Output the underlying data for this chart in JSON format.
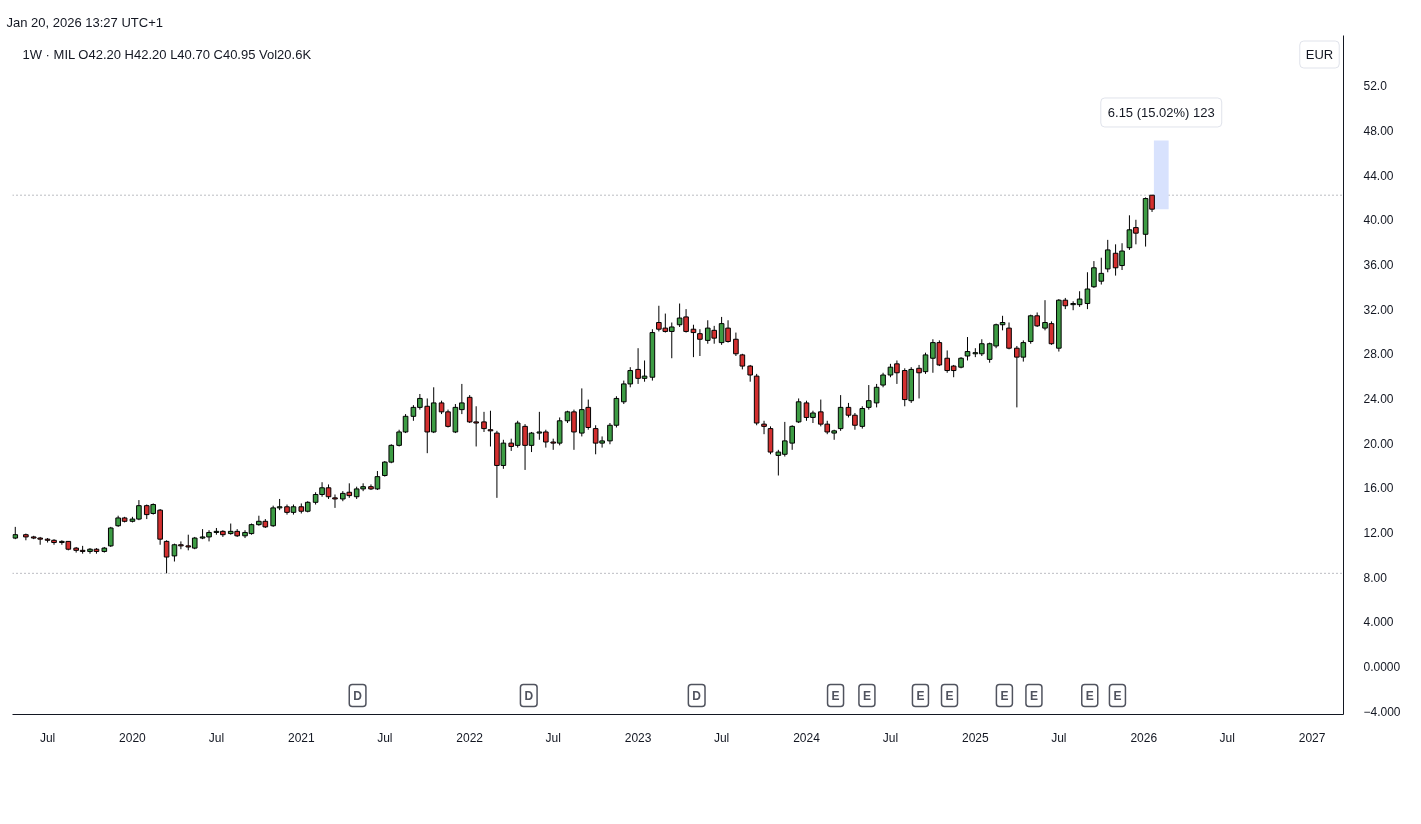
{
  "chart_data": {
    "type": "candlestick",
    "title": "1W · MIL O42.20 H42.20 L40.70 C40.95 Vol20.6K",
    "ylabel": "EUR",
    "annotations": [
      "Jan 20, 2026 13:27 UTC+1",
      {
        "text": "6.15 (15.02%) 123",
        "x": "2026-02-08",
        "y": 47.1
      },
      {
        "text": "D",
        "x": "2021-05-03",
        "y": -2.6
      },
      {
        "text": "D",
        "x": "2022-05-09",
        "y": -2.6
      },
      {
        "text": "D",
        "x": "2023-05-08",
        "y": -2.6
      },
      {
        "text": "E",
        "x": "2024-03-04",
        "y": -2.6
      },
      {
        "text": "E",
        "x": "2024-05-11",
        "y": -2.6
      },
      {
        "text": "E",
        "x": "2024-09-04",
        "y": -2.6
      },
      {
        "text": "E",
        "x": "2024-11-06",
        "y": -2.6
      },
      {
        "text": "E",
        "x": "2025-03-05",
        "y": -2.6
      },
      {
        "text": "E",
        "x": "2025-05-08",
        "y": -2.6
      },
      {
        "text": "E",
        "x": "2025-09-06",
        "y": -2.6
      },
      {
        "text": "E",
        "x": "2025-11-05",
        "y": -2.6
      }
    ],
    "series": [
      {
        "type": "bar",
        "x": [
          "2026-02-08"
        ],
        "base": [
          40.95
        ],
        "values": [
          6.15
        ],
        "color": "#d8e2fd"
      }
    ],
    "x": [
      "2019-04-22",
      "2019-05-15",
      "2019-06-01",
      "2019-06-15",
      "2019-07-01",
      "2019-07-15",
      "2019-08-01",
      "2019-08-15",
      "2019-09-01",
      "2019-09-15",
      "2019-10-01",
      "2019-10-15",
      "2019-11-01",
      "2019-11-15",
      "2019-12-01",
      "2019-12-15",
      "2020-01-01",
      "2020-01-15",
      "2020-02-01",
      "2020-02-15",
      "2020-03-01",
      "2020-03-15",
      "2020-04-01",
      "2020-04-15",
      "2020-05-01",
      "2020-05-15",
      "2020-06-01",
      "2020-06-15",
      "2020-07-01",
      "2020-07-15",
      "2020-08-01",
      "2020-08-15",
      "2020-09-01",
      "2020-09-15",
      "2020-10-01",
      "2020-10-15",
      "2020-11-01",
      "2020-11-15",
      "2020-12-01",
      "2020-12-15",
      "2021-01-01",
      "2021-01-15",
      "2021-02-01",
      "2021-02-15",
      "2021-03-01",
      "2021-03-15",
      "2021-04-01",
      "2021-04-15",
      "2021-05-01",
      "2021-05-15",
      "2021-06-01",
      "2021-06-15",
      "2021-07-01",
      "2021-07-15",
      "2021-08-01",
      "2021-08-15",
      "2021-09-01",
      "2021-09-15",
      "2021-10-01",
      "2021-10-15",
      "2021-11-01",
      "2021-11-15",
      "2021-12-01",
      "2021-12-15",
      "2022-01-01",
      "2022-01-15",
      "2022-02-01",
      "2022-02-15",
      "2022-03-01",
      "2022-03-15",
      "2022-04-01",
      "2022-04-15",
      "2022-05-01",
      "2022-05-15",
      "2022-06-01",
      "2022-06-15",
      "2022-07-01",
      "2022-07-15",
      "2022-08-01",
      "2022-08-15",
      "2022-09-01",
      "2022-09-15",
      "2022-10-01",
      "2022-10-15",
      "2022-11-01",
      "2022-11-15",
      "2022-12-01",
      "2022-12-15",
      "2023-01-01",
      "2023-01-15",
      "2023-02-01",
      "2023-02-15",
      "2023-03-01",
      "2023-03-15",
      "2023-04-01",
      "2023-04-15",
      "2023-05-01",
      "2023-05-15",
      "2023-06-01",
      "2023-06-15",
      "2023-07-01",
      "2023-07-15",
      "2023-08-01",
      "2023-08-15",
      "2023-09-01",
      "2023-09-15",
      "2023-10-01",
      "2023-10-15",
      "2023-11-01",
      "2023-11-15",
      "2023-12-01",
      "2023-12-15",
      "2024-01-01",
      "2024-01-15",
      "2024-02-01",
      "2024-02-15",
      "2024-03-01",
      "2024-03-15",
      "2024-04-01",
      "2024-04-15",
      "2024-05-01",
      "2024-05-15",
      "2024-06-01",
      "2024-06-15",
      "2024-07-01",
      "2024-07-15",
      "2024-08-01",
      "2024-08-15",
      "2024-09-01",
      "2024-09-15",
      "2024-10-01",
      "2024-10-15",
      "2024-11-01",
      "2024-11-15",
      "2024-12-01",
      "2024-12-15",
      "2025-01-01",
      "2025-01-15",
      "2025-02-01",
      "2025-02-15",
      "2025-03-01",
      "2025-03-15",
      "2025-04-01",
      "2025-04-15",
      "2025-05-01",
      "2025-05-15",
      "2025-06-01",
      "2025-06-15",
      "2025-07-01",
      "2025-07-15",
      "2025-08-01",
      "2025-08-15",
      "2025-09-01",
      "2025-09-15",
      "2025-10-01",
      "2025-10-15",
      "2025-11-01",
      "2025-11-15",
      "2025-12-01",
      "2025-12-15",
      "2026-01-05",
      "2026-01-19"
    ],
    "ohlc": [
      [
        11.5,
        12.5,
        11.4,
        11.8
      ],
      [
        11.8,
        11.9,
        11.3,
        11.6
      ],
      [
        11.6,
        11.7,
        11.4,
        11.5
      ],
      [
        11.5,
        11.6,
        10.9,
        11.4
      ],
      [
        11.4,
        11.5,
        11.1,
        11.3
      ],
      [
        11.3,
        11.4,
        10.9,
        11.1
      ],
      [
        11.1,
        11.3,
        10.9,
        11.2
      ],
      [
        11.2,
        11.2,
        10.4,
        10.5
      ],
      [
        10.6,
        10.7,
        10.2,
        10.4
      ],
      [
        10.4,
        10.8,
        10.1,
        10.3
      ],
      [
        10.3,
        10.6,
        10.1,
        10.5
      ],
      [
        10.5,
        10.6,
        10.1,
        10.3
      ],
      [
        10.3,
        10.7,
        10.2,
        10.6
      ],
      [
        10.8,
        12.5,
        10.7,
        12.4
      ],
      [
        12.6,
        13.5,
        12.5,
        13.3
      ],
      [
        13.3,
        13.4,
        12.9,
        13.0
      ],
      [
        13.0,
        13.4,
        12.9,
        13.2
      ],
      [
        13.2,
        14.9,
        13.1,
        14.4
      ],
      [
        14.4,
        14.5,
        13.2,
        13.6
      ],
      [
        13.7,
        14.6,
        13.6,
        14.5
      ],
      [
        14.0,
        14.1,
        10.9,
        11.4
      ],
      [
        11.2,
        11.3,
        8.34,
        9.8
      ],
      [
        9.9,
        11.0,
        9.4,
        10.9
      ],
      [
        10.9,
        11.2,
        10.5,
        10.8
      ],
      [
        10.8,
        11.8,
        10.4,
        10.7
      ],
      [
        10.6,
        11.6,
        10.5,
        11.5
      ],
      [
        11.5,
        12.3,
        11.4,
        11.6
      ],
      [
        11.6,
        12.2,
        11.2,
        12.0
      ],
      [
        12.0,
        12.4,
        11.8,
        12.1
      ],
      [
        12.1,
        12.2,
        11.6,
        11.8
      ],
      [
        11.9,
        12.8,
        11.8,
        12.1
      ],
      [
        12.1,
        12.3,
        11.6,
        11.7
      ],
      [
        11.7,
        12.2,
        11.5,
        12.0
      ],
      [
        11.9,
        12.8,
        11.8,
        12.7
      ],
      [
        12.7,
        13.5,
        12.6,
        13.0
      ],
      [
        13.0,
        13.2,
        12.4,
        12.5
      ],
      [
        12.6,
        14.4,
        12.5,
        14.2
      ],
      [
        14.2,
        15.0,
        14.0,
        14.3
      ],
      [
        14.3,
        14.5,
        13.6,
        13.8
      ],
      [
        13.8,
        14.5,
        13.6,
        14.3
      ],
      [
        14.3,
        14.6,
        13.7,
        13.9
      ],
      [
        13.9,
        14.8,
        13.8,
        14.7
      ],
      [
        14.7,
        15.6,
        14.5,
        15.4
      ],
      [
        15.4,
        16.5,
        15.2,
        16.0
      ],
      [
        16.0,
        16.3,
        15.0,
        15.2
      ],
      [
        15.1,
        15.4,
        14.2,
        15.0
      ],
      [
        15.0,
        15.7,
        14.8,
        15.5
      ],
      [
        15.6,
        16.4,
        15.1,
        15.3
      ],
      [
        15.2,
        16.1,
        15.0,
        15.9
      ],
      [
        15.9,
        16.4,
        15.7,
        16.1
      ],
      [
        16.1,
        16.3,
        15.8,
        15.9
      ],
      [
        15.9,
        17.5,
        15.8,
        17.0
      ],
      [
        17.1,
        18.4,
        17.0,
        18.3
      ],
      [
        18.3,
        19.9,
        18.2,
        19.8
      ],
      [
        19.8,
        21.2,
        19.7,
        21.0
      ],
      [
        21.0,
        22.6,
        20.9,
        22.4
      ],
      [
        22.4,
        23.4,
        22.0,
        23.2
      ],
      [
        23.2,
        24.4,
        23.0,
        24.0
      ],
      [
        23.3,
        24.0,
        19.1,
        21.0
      ],
      [
        21.0,
        25.0,
        20.9,
        23.6
      ],
      [
        23.6,
        23.8,
        22.6,
        22.8
      ],
      [
        22.8,
        23.0,
        21.4,
        21.5
      ],
      [
        21.0,
        23.5,
        20.9,
        23.2
      ],
      [
        23.0,
        25.3,
        22.6,
        23.6
      ],
      [
        24.1,
        24.3,
        21.8,
        21.9
      ],
      [
        21.9,
        23.3,
        19.7,
        21.8
      ],
      [
        21.9,
        22.8,
        21.0,
        21.3
      ],
      [
        21.2,
        22.9,
        19.7,
        21.1
      ],
      [
        20.9,
        21.1,
        15.1,
        18.0
      ],
      [
        18.0,
        20.3,
        17.7,
        20.0
      ],
      [
        20.0,
        20.4,
        19.3,
        19.7
      ],
      [
        19.8,
        22.0,
        19.6,
        21.8
      ],
      [
        21.5,
        21.7,
        17.6,
        19.8
      ],
      [
        19.8,
        21.0,
        19.2,
        20.9
      ],
      [
        20.9,
        22.8,
        20.3,
        21.0
      ],
      [
        21.0,
        21.2,
        19.6,
        20.1
      ],
      [
        20.1,
        20.4,
        19.4,
        20.0
      ],
      [
        20.0,
        22.3,
        19.8,
        22.0
      ],
      [
        22.0,
        22.9,
        21.8,
        22.8
      ],
      [
        22.8,
        23.0,
        19.4,
        21.0
      ],
      [
        20.9,
        24.9,
        20.6,
        23.0
      ],
      [
        23.2,
        23.9,
        21.2,
        21.4
      ],
      [
        21.3,
        21.6,
        19.0,
        20.0
      ],
      [
        20.0,
        20.6,
        19.6,
        20.2
      ],
      [
        20.2,
        21.8,
        19.9,
        21.6
      ],
      [
        21.6,
        24.2,
        21.4,
        24.0
      ],
      [
        23.7,
        25.6,
        23.5,
        25.3
      ],
      [
        25.3,
        26.8,
        25.0,
        26.5
      ],
      [
        26.6,
        28.5,
        25.3,
        25.8
      ],
      [
        25.8,
        27.4,
        25.5,
        26.0
      ],
      [
        25.9,
        30.2,
        25.6,
        29.9
      ],
      [
        30.8,
        32.3,
        30.0,
        30.2
      ],
      [
        30.3,
        31.6,
        29.9,
        30.0
      ],
      [
        30.0,
        30.8,
        27.6,
        30.4
      ],
      [
        30.6,
        32.5,
        30.4,
        31.2
      ],
      [
        31.3,
        32.0,
        29.9,
        30.0
      ],
      [
        30.2,
        30.6,
        27.7,
        29.9
      ],
      [
        29.8,
        30.2,
        27.8,
        29.3
      ],
      [
        29.2,
        31.0,
        28.9,
        30.3
      ],
      [
        30.1,
        30.5,
        28.9,
        29.4
      ],
      [
        29.0,
        31.3,
        28.8,
        30.7
      ],
      [
        30.3,
        31.0,
        29.0,
        29.1
      ],
      [
        29.3,
        29.9,
        27.8,
        28.0
      ],
      [
        27.9,
        28.0,
        26.6,
        26.9
      ],
      [
        26.9,
        27.0,
        25.5,
        26.1
      ],
      [
        26.0,
        26.2,
        21.6,
        21.8
      ],
      [
        21.7,
        22.0,
        20.8,
        21.5
      ],
      [
        21.3,
        21.5,
        19.0,
        19.2
      ],
      [
        18.9,
        19.4,
        17.1,
        19.2
      ],
      [
        19.0,
        21.9,
        18.8,
        20.2
      ],
      [
        20.0,
        21.6,
        19.4,
        21.5
      ],
      [
        21.9,
        24.0,
        21.8,
        23.7
      ],
      [
        23.6,
        23.8,
        22.0,
        22.3
      ],
      [
        22.3,
        22.9,
        21.8,
        22.7
      ],
      [
        22.8,
        23.9,
        21.5,
        21.7
      ],
      [
        21.7,
        22.0,
        20.8,
        21.0
      ],
      [
        20.9,
        21.2,
        20.3,
        21.1
      ],
      [
        21.3,
        24.3,
        21.1,
        23.2
      ],
      [
        23.2,
        23.6,
        22.3,
        22.5
      ],
      [
        22.5,
        22.7,
        21.2,
        21.6
      ],
      [
        21.5,
        23.3,
        21.3,
        23.1
      ],
      [
        23.2,
        25.2,
        23.0,
        23.8
      ],
      [
        23.6,
        25.3,
        23.2,
        25.0
      ],
      [
        25.2,
        26.3,
        25.0,
        26.1
      ],
      [
        26.1,
        27.1,
        25.9,
        26.8
      ],
      [
        27.1,
        27.4,
        25.3,
        26.3
      ],
      [
        26.5,
        26.7,
        23.3,
        23.9
      ],
      [
        23.8,
        26.8,
        23.6,
        26.6
      ],
      [
        26.7,
        27.0,
        24.0,
        26.3
      ],
      [
        26.4,
        28.1,
        26.2,
        27.9
      ],
      [
        27.6,
        29.3,
        26.3,
        29.0
      ],
      [
        29.0,
        29.2,
        26.9,
        27.0
      ],
      [
        27.6,
        28.3,
        26.3,
        26.5
      ],
      [
        26.9,
        27.0,
        25.9,
        26.5
      ],
      [
        26.8,
        27.7,
        26.7,
        27.6
      ],
      [
        27.8,
        29.5,
        27.4,
        28.2
      ],
      [
        28.0,
        28.5,
        27.7,
        28.1
      ],
      [
        28.0,
        29.3,
        27.8,
        28.9
      ],
      [
        27.5,
        29.0,
        27.2,
        28.9
      ],
      [
        28.7,
        30.7,
        28.5,
        30.6
      ],
      [
        30.6,
        31.4,
        30.1,
        30.8
      ],
      [
        30.3,
        30.8,
        28.4,
        28.5
      ],
      [
        28.5,
        28.7,
        23.2,
        27.7
      ],
      [
        27.7,
        29.2,
        27.3,
        29.0
      ],
      [
        29.1,
        31.5,
        28.9,
        31.4
      ],
      [
        31.4,
        31.7,
        30.4,
        30.5
      ],
      [
        30.3,
        32.8,
        30.1,
        30.8
      ],
      [
        30.7,
        30.9,
        28.8,
        28.9
      ],
      [
        28.5,
        32.9,
        28.2,
        32.8
      ],
      [
        32.8,
        33.0,
        32.0,
        32.3
      ],
      [
        32.4,
        32.7,
        31.9,
        32.5
      ],
      [
        32.4,
        33.6,
        32.2,
        32.9
      ],
      [
        32.5,
        35.3,
        32.0,
        33.8
      ],
      [
        34.0,
        36.3,
        33.9,
        35.7
      ],
      [
        34.5,
        36.6,
        34.2,
        35.2
      ],
      [
        35.6,
        38.2,
        35.3,
        37.3
      ],
      [
        37.0,
        37.8,
        35.0,
        35.7
      ],
      [
        35.9,
        37.9,
        35.5,
        37.2
      ],
      [
        37.5,
        40.4,
        37.3,
        39.1
      ],
      [
        39.3,
        40.0,
        37.8,
        38.8
      ],
      [
        38.7,
        42.0,
        37.6,
        41.9
      ],
      [
        42.2,
        42.2,
        40.7,
        40.95
      ]
    ],
    "colors": [
      "#3d9c44",
      "#d32f2f",
      "#d32f2f",
      "#d32f2f",
      "#d32f2f",
      "#d32f2f",
      "#3d9c44",
      "#d32f2f",
      "#d32f2f",
      "#d32f2f",
      "#3d9c44",
      "#d32f2f",
      "#3d9c44",
      "#3d9c44",
      "#3d9c44",
      "#d32f2f",
      "#3d9c44",
      "#3d9c44",
      "#d32f2f",
      "#3d9c44",
      "#d32f2f",
      "#d32f2f",
      "#3d9c44",
      "#d32f2f",
      "#d32f2f",
      "#3d9c44",
      "#3d9c44",
      "#3d9c44",
      "#3d9c44",
      "#d32f2f",
      "#3d9c44",
      "#d32f2f",
      "#3d9c44",
      "#3d9c44",
      "#3d9c44",
      "#d32f2f",
      "#3d9c44",
      "#3d9c44",
      "#d32f2f",
      "#3d9c44",
      "#d32f2f",
      "#3d9c44",
      "#3d9c44",
      "#3d9c44",
      "#d32f2f",
      "#d32f2f",
      "#3d9c44",
      "#d32f2f",
      "#3d9c44",
      "#3d9c44",
      "#d32f2f",
      "#3d9c44",
      "#3d9c44",
      "#3d9c44",
      "#3d9c44",
      "#3d9c44",
      "#3d9c44",
      "#3d9c44",
      "#d32f2f",
      "#3d9c44",
      "#d32f2f",
      "#d32f2f",
      "#3d9c44",
      "#3d9c44",
      "#d32f2f",
      "#d32f2f",
      "#d32f2f",
      "#d32f2f",
      "#d32f2f",
      "#3d9c44",
      "#d32f2f",
      "#3d9c44",
      "#d32f2f",
      "#3d9c44",
      "#3d9c44",
      "#d32f2f",
      "#d32f2f",
      "#3d9c44",
      "#3d9c44",
      "#d32f2f",
      "#3d9c44",
      "#d32f2f",
      "#d32f2f",
      "#3d9c44",
      "#3d9c44",
      "#3d9c44",
      "#3d9c44",
      "#3d9c44",
      "#d32f2f",
      "#3d9c44",
      "#3d9c44",
      "#d32f2f",
      "#d32f2f",
      "#3d9c44",
      "#3d9c44",
      "#d32f2f",
      "#d32f2f",
      "#d32f2f",
      "#3d9c44",
      "#d32f2f",
      "#3d9c44",
      "#d32f2f",
      "#d32f2f",
      "#d32f2f",
      "#d32f2f",
      "#d32f2f",
      "#d32f2f",
      "#d32f2f",
      "#3d9c44",
      "#3d9c44",
      "#3d9c44",
      "#3d9c44",
      "#d32f2f",
      "#3d9c44",
      "#d32f2f",
      "#d32f2f",
      "#3d9c44",
      "#3d9c44",
      "#d32f2f",
      "#d32f2f",
      "#3d9c44",
      "#3d9c44",
      "#3d9c44",
      "#3d9c44",
      "#3d9c44",
      "#d32f2f",
      "#d32f2f",
      "#3d9c44",
      "#d32f2f",
      "#3d9c44",
      "#3d9c44",
      "#d32f2f",
      "#d32f2f",
      "#d32f2f",
      "#3d9c44",
      "#3d9c44",
      "#3d9c44",
      "#3d9c44",
      "#3d9c44",
      "#3d9c44",
      "#3d9c44",
      "#d32f2f",
      "#d32f2f",
      "#3d9c44",
      "#3d9c44",
      "#d32f2f",
      "#3d9c44",
      "#d32f2f",
      "#3d9c44",
      "#d32f2f",
      "#3d9c44",
      "#3d9c44",
      "#3d9c44",
      "#3d9c44",
      "#3d9c44",
      "#3d9c44",
      "#d32f2f",
      "#3d9c44",
      "#3d9c44",
      "#d32f2f",
      "#3d9c44",
      "#d32f2f"
    ],
    "xlim": [
      "2019-04-16",
      "2027-03-10"
    ],
    "xticks": [
      {
        "value": "2019-07-01",
        "label": "Jul"
      },
      {
        "value": "2020-01-01",
        "label": "2020"
      },
      {
        "value": "2020-07-01",
        "label": "Jul"
      },
      {
        "value": "2021-01-01",
        "label": "2021"
      },
      {
        "value": "2021-07-01",
        "label": "Jul"
      },
      {
        "value": "2022-01-01",
        "label": "2022"
      },
      {
        "value": "2022-07-01",
        "label": "Jul"
      },
      {
        "value": "2023-01-01",
        "label": "2023"
      },
      {
        "value": "2023-07-01",
        "label": "Jul"
      },
      {
        "value": "2024-01-01",
        "label": "2024"
      },
      {
        "value": "2024-07-01",
        "label": "Jul"
      },
      {
        "value": "2025-01-01",
        "label": "2025"
      },
      {
        "value": "2025-07-01",
        "label": "Jul"
      },
      {
        "value": "2026-01-01",
        "label": "2026"
      },
      {
        "value": "2026-07-01",
        "label": "Jul"
      },
      {
        "value": "2027-01-01",
        "label": "2027"
      }
    ],
    "ylim": [
      -4.3,
      56.5
    ],
    "yticks": [
      {
        "value": 52,
        "label": "52.0"
      },
      {
        "value": 48,
        "label": "48.00"
      },
      {
        "value": 44,
        "label": "44.00"
      },
      {
        "value": 40,
        "label": "40.00"
      },
      {
        "value": 36,
        "label": "36.00"
      },
      {
        "value": 32,
        "label": "32.00"
      },
      {
        "value": 28,
        "label": "28.00"
      },
      {
        "value": 24,
        "label": "24.00"
      },
      {
        "value": 20,
        "label": "20.00"
      },
      {
        "value": 16,
        "label": "16.00"
      },
      {
        "value": 12,
        "label": "12.00"
      },
      {
        "value": 8,
        "label": "8.00"
      },
      {
        "value": 4,
        "label": "4.000"
      },
      {
        "value": 0,
        "label": "0.0000"
      },
      {
        "value": -4,
        "label": "−4.000"
      }
    ],
    "ref_lines": [
      {
        "axis": "y",
        "value": 42.2,
        "color": "#787b86",
        "line_style": "dotted"
      },
      {
        "axis": "y",
        "value": 8.34,
        "color": "#787b86",
        "line_style": "dotted"
      }
    ]
  }
}
